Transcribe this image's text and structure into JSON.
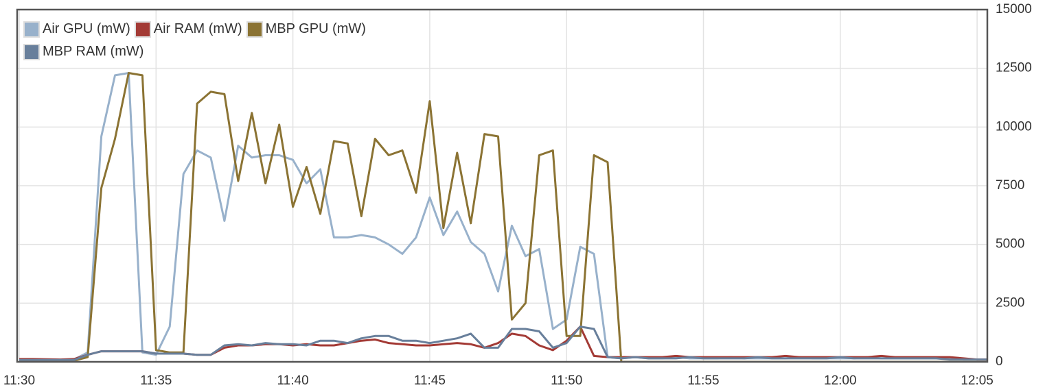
{
  "chart_data": {
    "type": "line",
    "categories": [
      "11:30",
      null,
      null,
      null,
      null,
      null,
      null,
      null,
      null,
      null,
      "11:35",
      null,
      null,
      null,
      null,
      null,
      null,
      null,
      null,
      null,
      "11:40",
      null,
      null,
      null,
      null,
      null,
      null,
      null,
      null,
      null,
      "11:45",
      null,
      null,
      null,
      null,
      null,
      null,
      null,
      null,
      null,
      "11:50",
      null,
      null,
      null,
      null,
      null,
      null,
      null,
      null,
      null,
      "11:55",
      null,
      null,
      null,
      null,
      null,
      null,
      null,
      null,
      null,
      "12:00",
      null,
      null,
      null,
      null,
      null,
      null,
      null,
      null,
      null,
      "12:05",
      null
    ],
    "series": [
      {
        "name": "Air GPU (mW)",
        "color": "#98b1cb",
        "values": [
          100,
          100,
          100,
          80,
          100,
          400,
          9600,
          12200,
          12300,
          400,
          300,
          1500,
          8000,
          9000,
          8700,
          6000,
          9200,
          8700,
          8800,
          8800,
          8600,
          7600,
          8200,
          5300,
          5300,
          5400,
          5300,
          5000,
          4600,
          5300,
          7000,
          5400,
          6400,
          5100,
          4600,
          3000,
          5800,
          4500,
          4800,
          1400,
          1800,
          4900,
          4600,
          200,
          150,
          200,
          150,
          150,
          200,
          150,
          150,
          150,
          200,
          150,
          150,
          150,
          150,
          200,
          150,
          150,
          150,
          150,
          200,
          150,
          150,
          150,
          150,
          150,
          150,
          100,
          100,
          100
        ]
      },
      {
        "name": "Air RAM (mW)",
        "color": "#a33a35",
        "values": [
          120,
          120,
          110,
          100,
          120,
          300,
          450,
          450,
          450,
          450,
          350,
          350,
          350,
          300,
          300,
          600,
          700,
          700,
          750,
          750,
          700,
          750,
          700,
          700,
          800,
          900,
          950,
          800,
          750,
          700,
          700,
          750,
          800,
          750,
          600,
          800,
          1200,
          1100,
          700,
          500,
          900,
          1500,
          250,
          200,
          200,
          200,
          200,
          200,
          250,
          200,
          200,
          200,
          200,
          200,
          200,
          200,
          250,
          200,
          200,
          200,
          200,
          200,
          200,
          250,
          200,
          200,
          200,
          200,
          200,
          150,
          100,
          100
        ]
      },
      {
        "name": "MBP GPU (mW)",
        "color": "#8b7333",
        "values": [
          50,
          50,
          50,
          50,
          50,
          200,
          7400,
          9500,
          12300,
          12200,
          500,
          400,
          400,
          11000,
          11500,
          11400,
          7700,
          10600,
          7600,
          10100,
          6600,
          8300,
          6300,
          9400,
          9300,
          6200,
          9500,
          8800,
          9000,
          7200,
          11100,
          5700,
          8900,
          5900,
          9700,
          9600,
          1800,
          2500,
          8800,
          9000,
          1100,
          1100,
          8800,
          8500,
          0,
          0,
          0,
          0,
          0,
          0,
          0,
          0,
          0,
          0,
          0,
          0,
          0,
          0,
          0,
          0,
          0,
          0,
          0,
          0,
          0,
          0,
          0,
          0,
          0,
          0,
          0,
          0
        ]
      },
      {
        "name": "MBP RAM (mW)",
        "color": "#687f9b",
        "values": [
          80,
          80,
          80,
          80,
          80,
          300,
          450,
          450,
          450,
          450,
          350,
          350,
          350,
          300,
          300,
          700,
          750,
          700,
          800,
          750,
          750,
          700,
          900,
          900,
          800,
          1000,
          1100,
          1100,
          900,
          900,
          800,
          900,
          1000,
          1200,
          600,
          600,
          1400,
          1400,
          1300,
          600,
          800,
          1500,
          1400,
          200,
          150,
          200,
          150,
          150,
          150,
          200,
          150,
          150,
          150,
          150,
          200,
          150,
          150,
          150,
          150,
          150,
          200,
          150,
          150,
          150,
          150,
          150,
          150,
          150,
          100,
          100,
          100,
          100
        ]
      }
    ],
    "ylim": [
      0,
      15000
    ],
    "yticks": [
      0,
      2500,
      5000,
      7500,
      10000,
      12500,
      15000
    ],
    "grid": true
  }
}
